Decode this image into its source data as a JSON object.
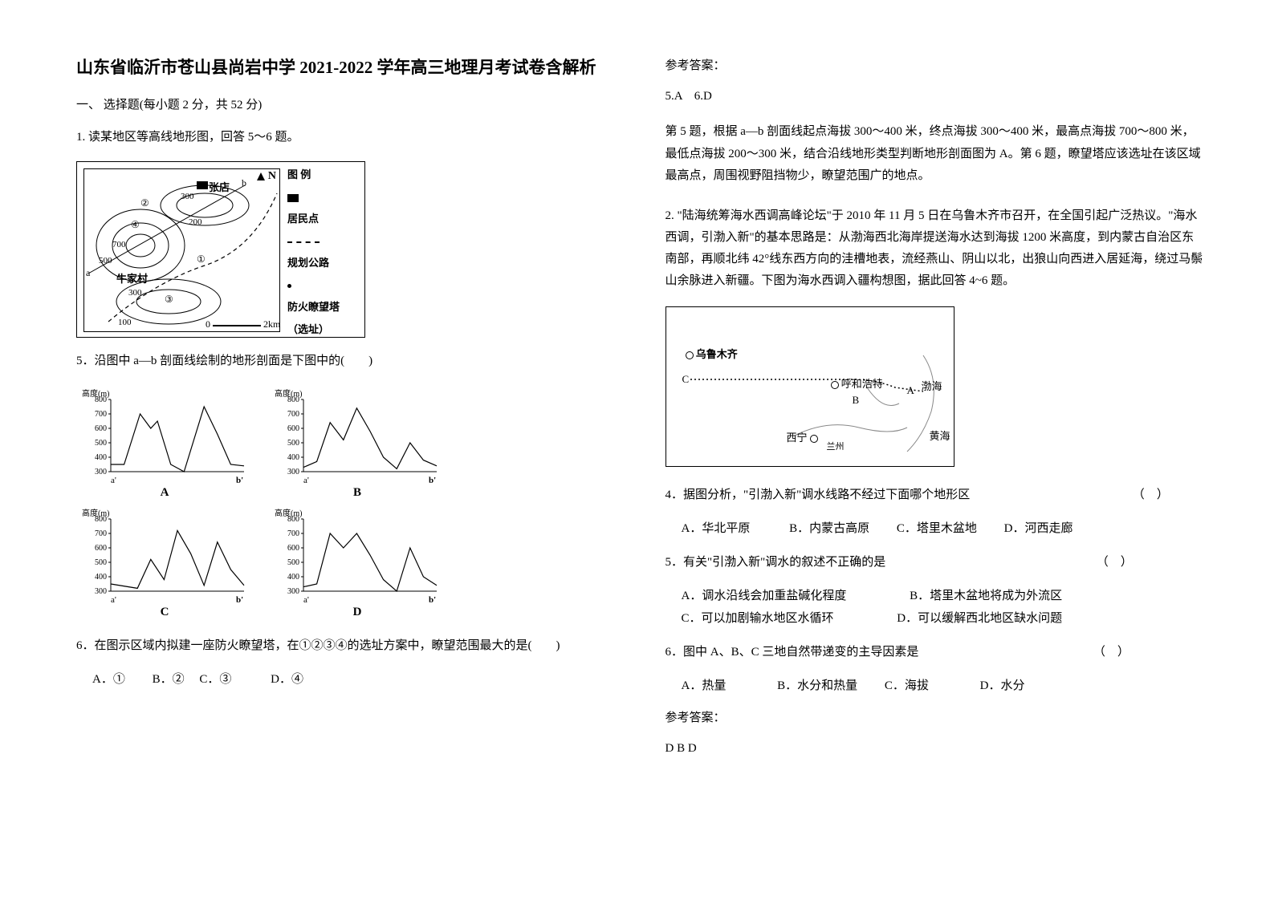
{
  "title": "山东省临沂市苍山县尚岩中学 2021-2022 学年高三地理月考试卷含解析",
  "section1": "一、 选择题(每小题 2 分，共 52 分)",
  "q1_intro": "1. 读某地区等高线地形图，回答 5～6 题。",
  "map1": {
    "places": {
      "zhangdian": "张店",
      "niujiacun": "牛家村"
    },
    "north": "N",
    "contours": [
      "100",
      "200",
      "300",
      "300",
      "500",
      "700"
    ],
    "markers": [
      "①",
      "②",
      "③",
      "④"
    ],
    "scale": {
      "left": "0",
      "right": "2km"
    },
    "points": {
      "a": "a",
      "b": "b",
      "aprime": "a'",
      "bprime": "b'"
    },
    "legend_title": "图 例",
    "legend_items": {
      "settlement": "居民点",
      "road": "规划公路",
      "tower_lbl1": "防火瞭望塔",
      "tower_lbl2": "（选址）"
    }
  },
  "q5": "5．沿图中 a—b 剖面线绘制的地形剖面是下图中的(　　)",
  "profiles": {
    "ytitle": "高度(m)",
    "xleft": "a'",
    "xright": "b'",
    "ticks": [
      "800",
      "700",
      "600",
      "500",
      "400",
      "300"
    ],
    "labels": {
      "A": "A",
      "B": "B",
      "C": "C",
      "D": "D"
    },
    "colors": {
      "axis": "#000000",
      "line": "#000000",
      "bg": "#ffffff"
    },
    "ylim": [
      300,
      800
    ],
    "xlim": [
      0,
      10
    ],
    "line_width": 1.2,
    "font_size": 10,
    "A": [
      [
        0,
        350
      ],
      [
        1,
        350
      ],
      [
        2.2,
        700
      ],
      [
        3,
        600
      ],
      [
        3.5,
        650
      ],
      [
        4.5,
        350
      ],
      [
        5.5,
        300
      ],
      [
        7,
        750
      ],
      [
        8,
        560
      ],
      [
        9,
        350
      ],
      [
        10,
        340
      ]
    ],
    "B": [
      [
        0,
        330
      ],
      [
        1,
        370
      ],
      [
        2,
        640
      ],
      [
        3,
        520
      ],
      [
        4,
        740
      ],
      [
        5,
        580
      ],
      [
        6,
        400
      ],
      [
        7,
        320
      ],
      [
        8,
        500
      ],
      [
        9,
        380
      ],
      [
        10,
        340
      ]
    ],
    "C": [
      [
        0,
        350
      ],
      [
        2,
        320
      ],
      [
        3,
        520
      ],
      [
        4,
        380
      ],
      [
        5,
        720
      ],
      [
        6,
        560
      ],
      [
        7,
        340
      ],
      [
        8,
        640
      ],
      [
        9,
        450
      ],
      [
        10,
        340
      ]
    ],
    "D": [
      [
        0,
        330
      ],
      [
        1,
        350
      ],
      [
        2,
        700
      ],
      [
        3,
        600
      ],
      [
        4,
        700
      ],
      [
        5,
        550
      ],
      [
        6,
        380
      ],
      [
        7,
        300
      ],
      [
        8,
        600
      ],
      [
        9,
        400
      ],
      [
        10,
        340
      ]
    ]
  },
  "q6": "6．在图示区域内拟建一座防火瞭望塔，在①②③④的选址方案中，瞭望范围最大的是(　　)",
  "q6_opts": {
    "A": "A．①",
    "B": "B．②",
    "C": "C．③",
    "D": "D．④"
  },
  "ans_head": "参考答案：",
  "ans56": "5.A　6.D",
  "ans56_body": "第 5 题，根据 a—b 剖面线起点海拔 300～400 米，终点海拔 300～400 米，最高点海拔 700～800 米，最低点海拔 200～300 米，结合沿线地形类型判断地形剖面图为 A。第 6 题，瞭望塔应该选址在该区域最高点，周围视野阻挡物少，瞭望范围广的地点。",
  "q2_intro": "2. \"陆海统筹海水西调高峰论坛\"于 2010 年 11 月 5 日在乌鲁木齐市召开，在全国引起广泛热议。\"海水西调，引渤入新\"的基本思路是：从渤海西北海岸提送海水达到海拔 1200 米高度，到内蒙古自治区东南部，再顺北纬 42°线东西方向的洼槽地表，流经燕山、阴山以北，出狼山向西进入居延海，绕过马鬃山余脉进入新疆。下图为海水西调入疆构想图，据此回答 4~6 题。",
  "map2": {
    "wulumuqi": "乌鲁木齐",
    "huhehaote": "呼和浩特",
    "xining": "西宁",
    "lanzhou": "兰州",
    "bohai": "渤海",
    "huanghai": "黄海",
    "A": "A",
    "B": "B",
    "C": "C"
  },
  "q4": "4．据图分析，\"引渤入新\"调水线路不经过下面哪个地形区　　　　　　　　　　　　　　（　）",
  "q4_opts": {
    "A": "A．华北平原",
    "B": "B．内蒙古高原",
    "C": "C．塔里木盆地",
    "D": "D．河西走廊"
  },
  "q5b": "5．有关\"引渤入新\"调水的叙述不正确的是　　　　　　　　　　　　　　　　　　（　）",
  "q5b_opts": {
    "A": "A．调水沿线会加重盐碱化程度",
    "B": "B．塔里木盆地将成为外流区",
    "C": "C．可以加剧输水地区水循环",
    "D": "D．可以缓解西北地区缺水问题"
  },
  "q6b": "6．图中 A、B、C 三地自然带递变的主导因素是　　　　　　　　　　　　　　　（　）",
  "q6b_opts": {
    "A": "A．热量",
    "B": "B．水分和热量",
    "C": "C．海拔",
    "D": "D．水分"
  },
  "ans2": "D B D"
}
